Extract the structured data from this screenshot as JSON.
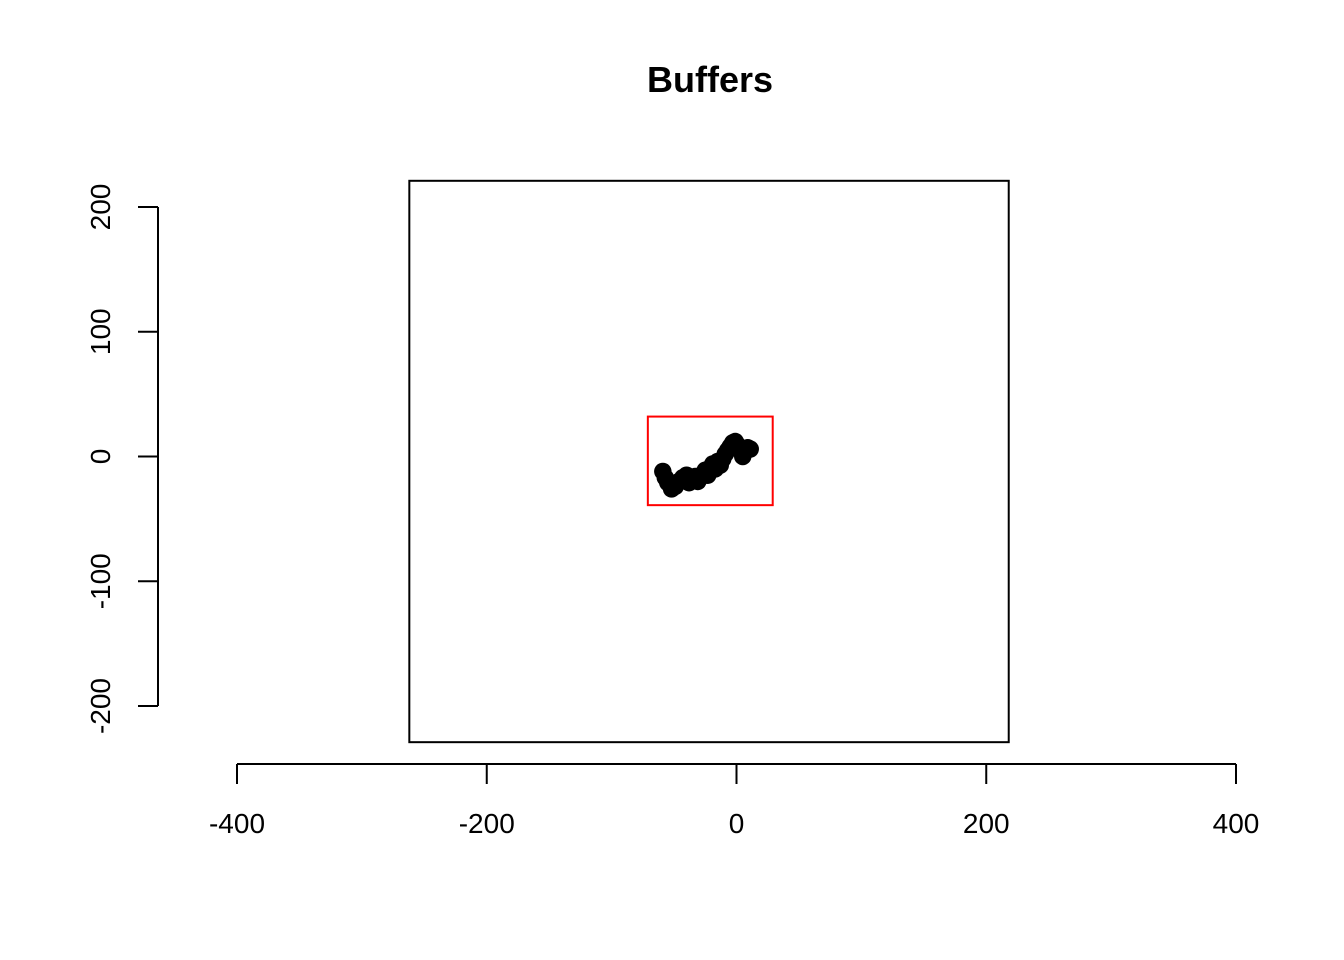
{
  "chart_data": {
    "type": "scatter",
    "title": "Buffers",
    "xlabel": "",
    "ylabel": "",
    "xlim": [
      -400,
      400
    ],
    "ylim": [
      -200,
      200
    ],
    "x_ticks": [
      "-400",
      "-200",
      "0",
      "200",
      "400"
    ],
    "y_ticks": [
      "-200",
      "-100",
      "0",
      "100",
      "200"
    ],
    "grid": false,
    "legend": "none",
    "regions": [
      {
        "kind": "outer-extent",
        "xmin": -262,
        "xmax": 218,
        "ymin": -229,
        "ymax": 221,
        "color": "#000000"
      },
      {
        "kind": "buffer-bbox",
        "xmin": -71,
        "xmax": 29,
        "ymin": -39,
        "ymax": 32,
        "color": "#ff0000"
      }
    ],
    "buffers": {
      "color": "#000000",
      "radius": 7,
      "points": [
        [
          -59,
          -12
        ],
        [
          -57,
          -17
        ],
        [
          -55,
          -21
        ],
        [
          -52,
          -26
        ],
        [
          -49,
          -24
        ],
        [
          -46,
          -20
        ],
        [
          -43,
          -17
        ],
        [
          -40,
          -15
        ],
        [
          -38,
          -21
        ],
        [
          -36,
          -18
        ],
        [
          -33,
          -16
        ],
        [
          -31,
          -20
        ],
        [
          -29,
          -17
        ],
        [
          -27,
          -14
        ],
        [
          -25,
          -11
        ],
        [
          -23,
          -15
        ],
        [
          -21,
          -9
        ],
        [
          -19,
          -6
        ],
        [
          -17,
          -10
        ],
        [
          -15,
          -4
        ],
        [
          -13,
          -7
        ],
        [
          -11,
          -2
        ],
        [
          -9,
          2
        ],
        [
          -7,
          5
        ],
        [
          -5,
          8
        ],
        [
          -3,
          11
        ],
        [
          -1,
          12
        ],
        [
          1,
          9
        ],
        [
          3,
          5
        ],
        [
          5,
          0
        ],
        [
          7,
          4
        ],
        [
          9,
          7
        ],
        [
          11,
          6
        ]
      ]
    }
  }
}
